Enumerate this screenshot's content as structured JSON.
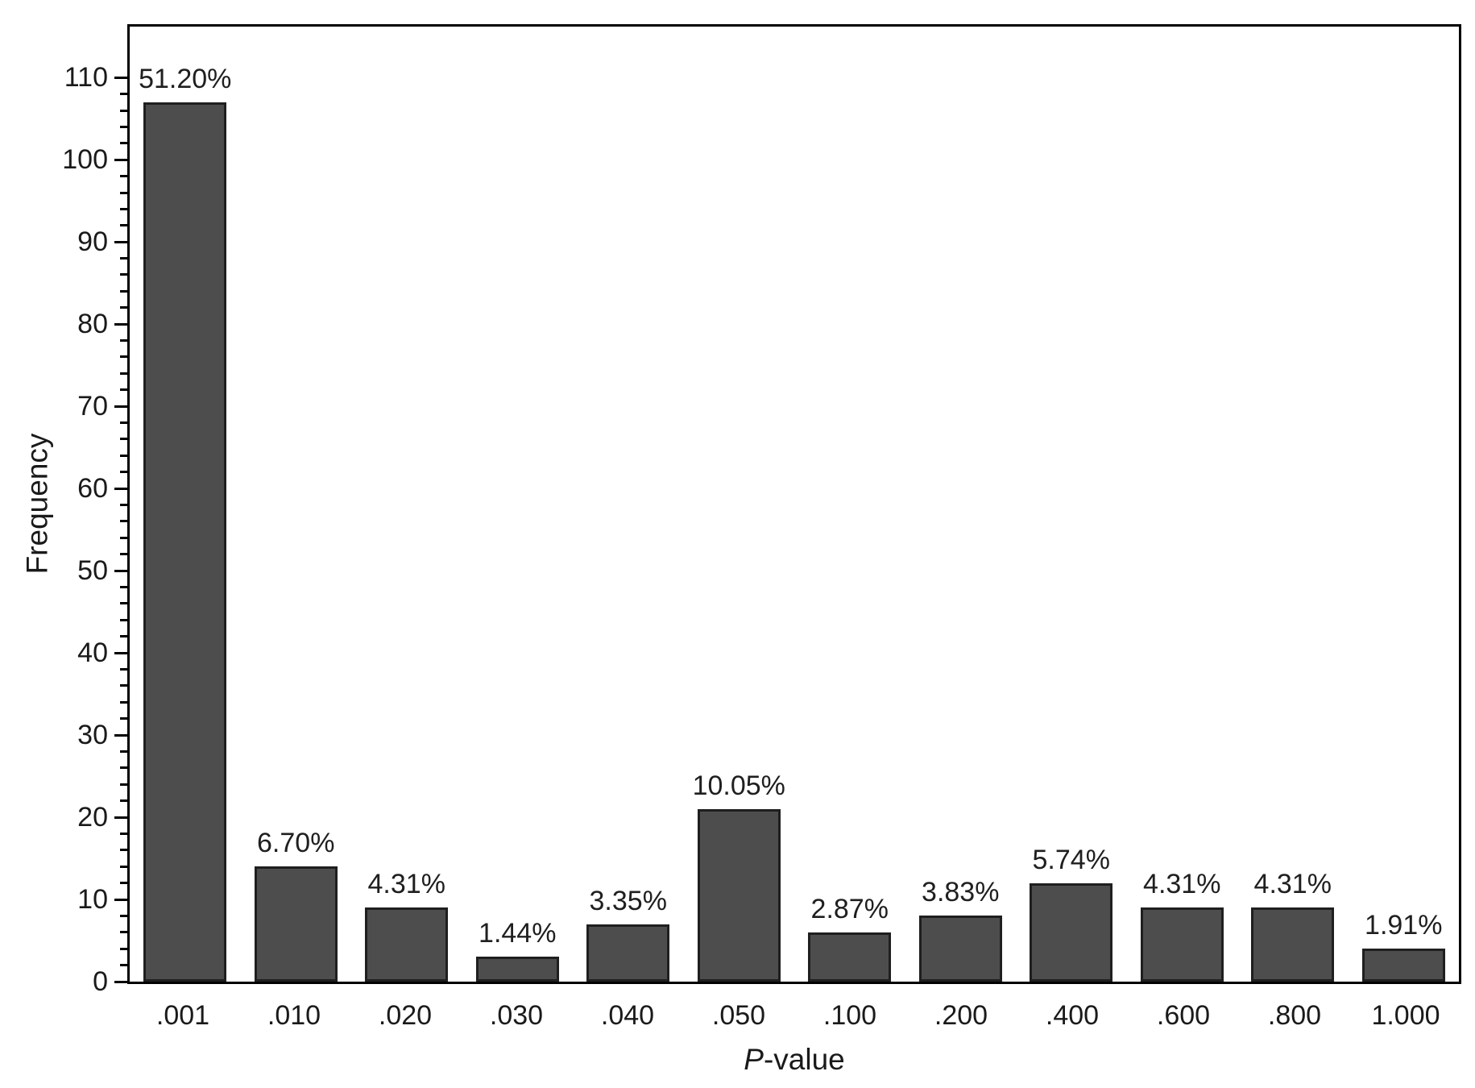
{
  "chart_data": {
    "type": "bar",
    "title": "",
    "xlabel_italic": "P",
    "xlabel_rest": "-value",
    "ylabel": "Frequency",
    "categories": [
      ".001",
      ".010",
      ".020",
      ".030",
      ".040",
      ".050",
      ".100",
      ".200",
      ".400",
      ".600",
      ".800",
      "1.000"
    ],
    "values": [
      107,
      14,
      9,
      3,
      7,
      21,
      6,
      8,
      12,
      9,
      9,
      4
    ],
    "bar_labels": [
      "51.20%",
      "6.70%",
      "4.31%",
      "1.44%",
      "3.35%",
      "10.05%",
      "2.87%",
      "3.83%",
      "5.74%",
      "4.31%",
      "4.31%",
      "1.91%"
    ],
    "ylim": [
      0,
      116.2
    ],
    "yticks": [
      0,
      10,
      20,
      30,
      40,
      50,
      60,
      70,
      80,
      90,
      100,
      110
    ],
    "y_minor_step": 2,
    "bar_width_fraction": 0.75,
    "grid": false,
    "legend_position": "none",
    "bar_color": "#4d4d4d",
    "bar_border_color": "#1f1f1f",
    "axis_color": "#000000",
    "text_color": "#1a1a1a",
    "background_color": "#ffffff"
  }
}
